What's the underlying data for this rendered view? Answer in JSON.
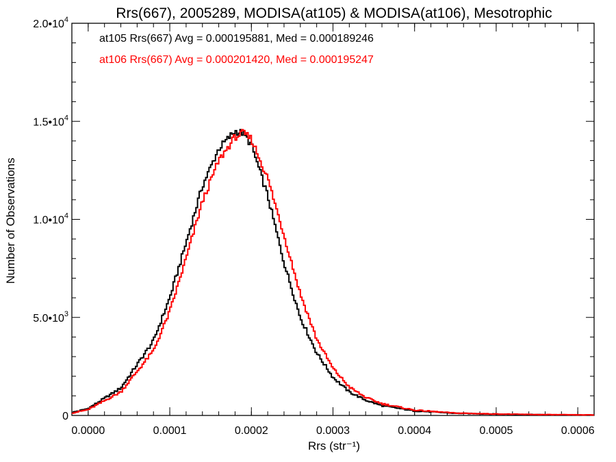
{
  "chart_data": {
    "type": "histogram",
    "title": "Rrs(667), 2005289, MODISA(at105) & MODISA(at106), Mesotrophic",
    "xlabel": "Rrs (str⁻¹)",
    "ylabel": "Number of Observations",
    "xlim": [
      -2e-05,
      0.00062
    ],
    "ylim": [
      0,
      20000
    ],
    "x_ticks": [
      {
        "value": 0.0,
        "label": "0.0000"
      },
      {
        "value": 0.0001,
        "label": "0.0001"
      },
      {
        "value": 0.0002,
        "label": "0.0002"
      },
      {
        "value": 0.0003,
        "label": "0.0003"
      },
      {
        "value": 0.0004,
        "label": "0.0004"
      },
      {
        "value": 0.0005,
        "label": "0.0005"
      },
      {
        "value": 0.0006,
        "label": "0.0006"
      }
    ],
    "y_ticks": [
      {
        "value": 0,
        "mantissa": "0",
        "exp": ""
      },
      {
        "value": 5000,
        "mantissa": "5.0•1",
        "exp": ""
      },
      {
        "value": 10000,
        "mantissa": "1.0•1",
        "exp": ""
      },
      {
        "value": 15000,
        "mantissa": "1.5•1",
        "exp": ""
      },
      {
        "value": 20000,
        "mantissa": "2.0•1",
        "exp": ""
      }
    ],
    "y_tick_text": [
      {
        "value": 0,
        "base": "0",
        "exp": ""
      },
      {
        "value": 5000,
        "base": "5.0•10",
        "exp": "3"
      },
      {
        "value": 10000,
        "base": "1.0•10",
        "exp": "4"
      },
      {
        "value": 15000,
        "base": "1.5•10",
        "exp": "4"
      },
      {
        "value": 20000,
        "base": "2.0•10",
        "exp": "4"
      }
    ],
    "series": [
      {
        "name": "at105",
        "color": "#000000",
        "legend": "at105 Rrs(667) Avg = 0.000195881, Med = 0.000189246",
        "peak_x": 0.00018,
        "peak_y": 15000,
        "sigma_left": 4.8e-05,
        "sigma_right": 5.2e-05,
        "tail_level": 60,
        "curve": [
          [
            -2e-05,
            150
          ],
          [
            0,
            350
          ],
          [
            4e-05,
            1400
          ],
          [
            8e-05,
            3800
          ],
          [
            0.0001,
            6000
          ],
          [
            0.00012,
            8800
          ],
          [
            0.00014,
            11700
          ],
          [
            0.00016,
            13600
          ],
          [
            0.00018,
            14500
          ],
          [
            0.00019,
            14400
          ],
          [
            0.0002,
            13800
          ],
          [
            0.00022,
            11200
          ],
          [
            0.00024,
            7800
          ],
          [
            0.00026,
            5000
          ],
          [
            0.00028,
            3200
          ],
          [
            0.0003,
            1950
          ],
          [
            0.00032,
            1200
          ],
          [
            0.00034,
            780
          ],
          [
            0.00036,
            500
          ],
          [
            0.0004,
            230
          ],
          [
            0.00045,
            110
          ],
          [
            0.0005,
            70
          ],
          [
            0.00055,
            40
          ],
          [
            0.00062,
            20
          ]
        ]
      },
      {
        "name": "at106",
        "color": "#ff0000",
        "legend": "at106 Rrs(667) Avg = 0.000201420, Med = 0.000195247",
        "curve": [
          [
            -2e-05,
            120
          ],
          [
            0,
            300
          ],
          [
            4e-05,
            1200
          ],
          [
            8e-05,
            3300
          ],
          [
            0.0001,
            5300
          ],
          [
            0.00012,
            8000
          ],
          [
            0.00014,
            10900
          ],
          [
            0.00016,
            13000
          ],
          [
            0.00018,
            14200
          ],
          [
            0.00019,
            14400
          ],
          [
            0.0002,
            14100
          ],
          [
            0.00022,
            12100
          ],
          [
            0.00024,
            9200
          ],
          [
            0.00026,
            6200
          ],
          [
            0.00028,
            3900
          ],
          [
            0.0003,
            2400
          ],
          [
            0.00032,
            1450
          ],
          [
            0.00034,
            920
          ],
          [
            0.00036,
            600
          ],
          [
            0.0004,
            270
          ],
          [
            0.00045,
            120
          ],
          [
            0.0005,
            75
          ],
          [
            0.00055,
            45
          ],
          [
            0.00062,
            25
          ]
        ]
      }
    ],
    "bin_width": 2e-06
  }
}
